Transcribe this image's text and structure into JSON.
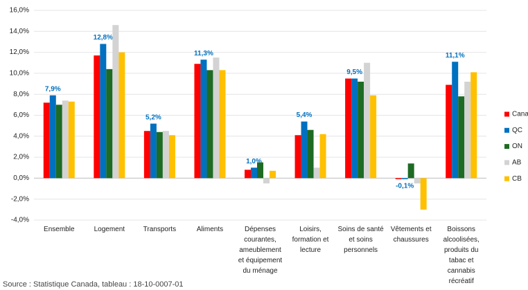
{
  "chart_data": {
    "type": "bar",
    "categories": [
      "Ensemble",
      "Logement",
      "Transports",
      "Aliments",
      "Dépenses courantes, ameublement et équipement du ménage",
      "Loisirs, formation et lecture",
      "Soins de santé et soins personnels",
      "Vêtements et chaussures",
      "Boissons alcoolisées, produits du tabac et cannabis récréatif"
    ],
    "series": [
      {
        "name": "Canada",
        "color": "#ff0000",
        "values": [
          7.2,
          11.7,
          4.5,
          10.9,
          0.8,
          4.1,
          9.5,
          -0.1,
          8.9
        ]
      },
      {
        "name": "QC",
        "color": "#0070c0",
        "values": [
          7.9,
          12.8,
          5.2,
          11.3,
          1.0,
          5.4,
          9.5,
          -0.1,
          11.1
        ],
        "value_labels": [
          "7,9%",
          "12,8%",
          "5,2%",
          "11,3%",
          "1,0%",
          "5,4%",
          "9,5%",
          "-0,1%",
          "11,1%"
        ]
      },
      {
        "name": "ON",
        "color": "#1e6b24",
        "values": [
          7.0,
          10.4,
          4.4,
          10.3,
          1.5,
          4.6,
          9.2,
          1.4,
          7.8
        ]
      },
      {
        "name": "AB",
        "color": "#d3d3d3",
        "values": [
          7.4,
          14.6,
          4.5,
          11.5,
          -0.5,
          1.0,
          11.0,
          -0.5,
          9.2
        ]
      },
      {
        "name": "CB",
        "color": "#ffc000",
        "values": [
          7.3,
          12.0,
          4.1,
          10.3,
          0.7,
          4.2,
          7.9,
          -3.0,
          10.1
        ]
      }
    ],
    "ylim": [
      -4,
      16
    ],
    "yticks": [
      {
        "value": -4,
        "label": "-4,0%"
      },
      {
        "value": -2,
        "label": "-2,0%"
      },
      {
        "value": 0,
        "label": "0,0%"
      },
      {
        "value": 2,
        "label": "2,0%"
      },
      {
        "value": 4,
        "label": "4,0%"
      },
      {
        "value": 6,
        "label": "6,0%"
      },
      {
        "value": 8,
        "label": "8,0%"
      },
      {
        "value": 10,
        "label": "10,0%"
      },
      {
        "value": 12,
        "label": "12,0%"
      },
      {
        "value": 14,
        "label": "14,0%"
      },
      {
        "value": 16,
        "label": "16,0%"
      }
    ],
    "grid": true,
    "legend": "right",
    "source": "Source : Statistique Canada, tableau : 18-10-0007-01"
  }
}
